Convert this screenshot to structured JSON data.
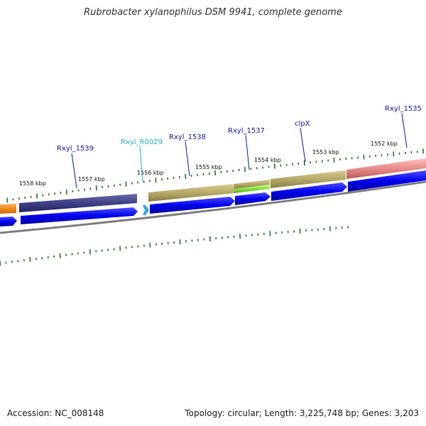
{
  "title": "Rubrobacter xylanophilus DSM 9941, complete genome",
  "footer": {
    "accession": "Accession: NC_008148",
    "summary": "Topology: circular; Length: 3,225,748 bp; Genes: 3,203"
  },
  "kbp_labels": [
    "1558 kbp",
    "1557 kbp",
    "1556 kbp",
    "1555 kbp",
    "1554 kbp",
    "1553 kbp",
    "1552 kbp"
  ],
  "gene_labels": [
    {
      "text": "Rxyl_1539",
      "color": "#1a1aa8"
    },
    {
      "text": "Rxyl_R0029",
      "color": "#2ab0e0"
    },
    {
      "text": "Rxyl_1538",
      "color": "#1a1aa8"
    },
    {
      "text": "Rxyl_1537",
      "color": "#1a1aa8"
    },
    {
      "text": "clpX",
      "color": "#1a1aa8"
    },
    {
      "text": "Rxyl_1535",
      "color": "#1a1aa8"
    }
  ],
  "colors": {
    "cds_arrow": "#0000ee",
    "rna_arrow": "#33aadd",
    "backbone": "#808080",
    "tick": "#2a7a2a",
    "label_line_gene": "#1a1aa8",
    "label_line_rna": "#2ab0e0",
    "feature_orange": "#f08a1a",
    "feature_navy": "#3c3c80",
    "feature_olive": "#b5a868",
    "feature_green": "#88e040",
    "feature_pink": "#e88a8a"
  }
}
